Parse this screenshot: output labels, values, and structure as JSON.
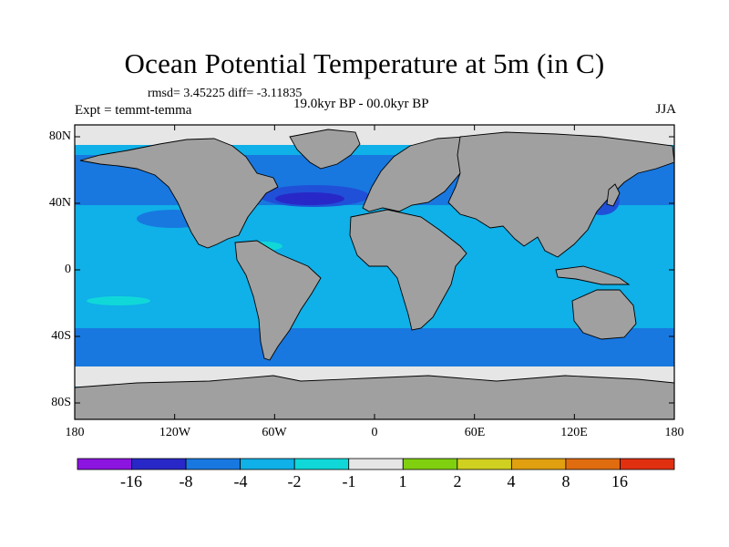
{
  "title": "Ocean Potential Temperature at 5m (in C)",
  "stats": "rmsd= 3.45225 diff= -3.11835",
  "expt": "Expt = temmt-temma",
  "period": "19.0kyr BP - 00.0kyr BP",
  "season": "JJA",
  "axes": {
    "lat_ticks": [
      "80N",
      "40N",
      "0",
      "40S",
      "80S"
    ],
    "lon_ticks": [
      "180",
      "120W",
      "60W",
      "0",
      "60E",
      "120E",
      "180"
    ]
  },
  "colors": {
    "land": "#a0a0a0",
    "ocean_main": "#10b0e8",
    "ocean_cold": "#1878e0",
    "ocean_very_cold": "#2050d8",
    "ocean_extreme": "#2828c8",
    "ocean_warm_cyan": "#10d8d8",
    "sea_ice": "#e6e6e6"
  },
  "colorbar": {
    "colors": [
      "#8c14e0",
      "#2828c8",
      "#1878e0",
      "#10b0e8",
      "#10d8d8",
      "#e6e6e6",
      "#80d010",
      "#d0d020",
      "#e0a010",
      "#e06c10",
      "#e03010"
    ],
    "labels": [
      "-16",
      "-8",
      "-4",
      "-2",
      "-1",
      "1",
      "2",
      "4",
      "8",
      "16"
    ]
  }
}
